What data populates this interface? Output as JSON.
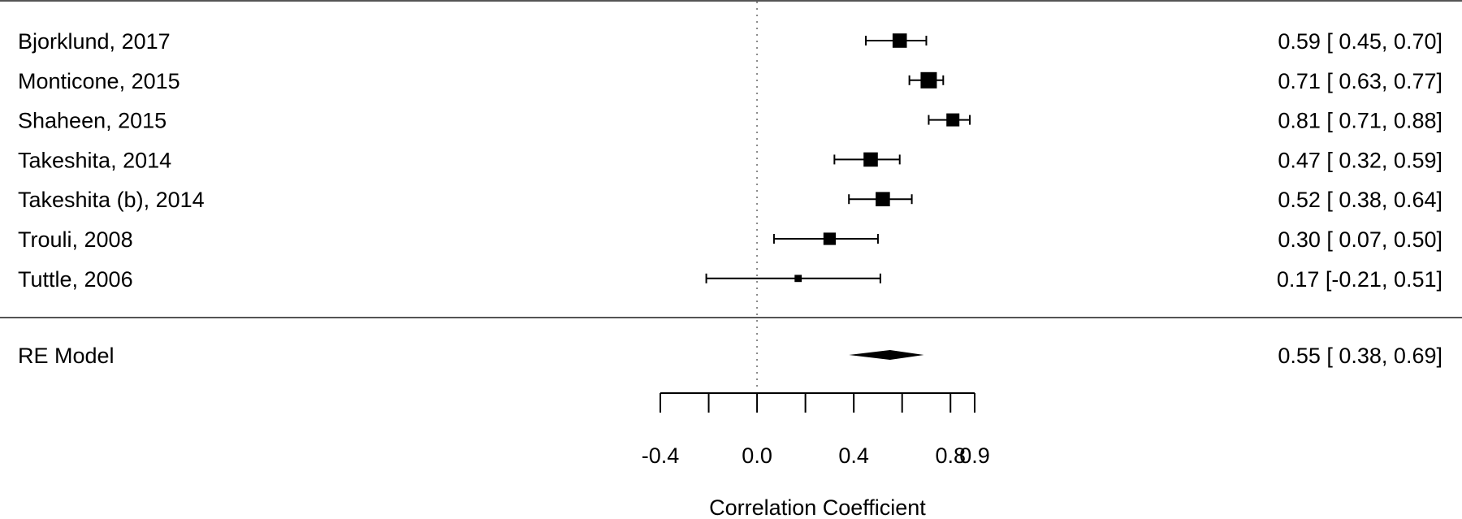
{
  "chart_data": {
    "type": "forest",
    "xlabel": "Correlation Coefficient",
    "xticks": [
      -0.4,
      -0.2,
      0.0,
      0.2,
      0.4,
      0.6,
      0.8,
      0.9
    ],
    "xtick_labels": [
      {
        "value": -0.4,
        "label": "-0.4"
      },
      {
        "value": 0.0,
        "label": "0.0"
      },
      {
        "value": 0.4,
        "label": "0.4"
      },
      {
        "value": 0.8,
        "label": "0.8"
      },
      {
        "value": 0.9,
        "label": "0.9"
      }
    ],
    "null_line": 0,
    "studies": [
      {
        "label": "Bjorklund, 2017",
        "estimate": 0.59,
        "lower": 0.45,
        "upper": 0.7,
        "ci_text": "0.59 [ 0.45, 0.70]",
        "weight": 0.85
      },
      {
        "label": "Monticone, 2015",
        "estimate": 0.71,
        "lower": 0.63,
        "upper": 0.77,
        "ci_text": "0.71 [ 0.63, 0.77]",
        "weight": 1.0
      },
      {
        "label": "Shaheen, 2015",
        "estimate": 0.81,
        "lower": 0.71,
        "upper": 0.88,
        "ci_text": "0.81 [ 0.71, 0.88]",
        "weight": 0.75
      },
      {
        "label": "Takeshita, 2014",
        "estimate": 0.47,
        "lower": 0.32,
        "upper": 0.59,
        "ci_text": "0.47 [ 0.32, 0.59]",
        "weight": 0.85
      },
      {
        "label": "Takeshita (b), 2014",
        "estimate": 0.52,
        "lower": 0.38,
        "upper": 0.64,
        "ci_text": "0.52 [ 0.38, 0.64]",
        "weight": 0.85
      },
      {
        "label": "Trouli, 2008",
        "estimate": 0.3,
        "lower": 0.07,
        "upper": 0.5,
        "ci_text": "0.30 [ 0.07, 0.50]",
        "weight": 0.7
      },
      {
        "label": "Tuttle, 2006",
        "estimate": 0.17,
        "lower": -0.21,
        "upper": 0.51,
        "ci_text": "0.17 [-0.21, 0.51]",
        "weight": 0.3
      }
    ],
    "summary": {
      "label": "RE Model",
      "estimate": 0.55,
      "lower": 0.38,
      "upper": 0.69,
      "ci_text": "0.55 [ 0.38, 0.69]"
    }
  }
}
